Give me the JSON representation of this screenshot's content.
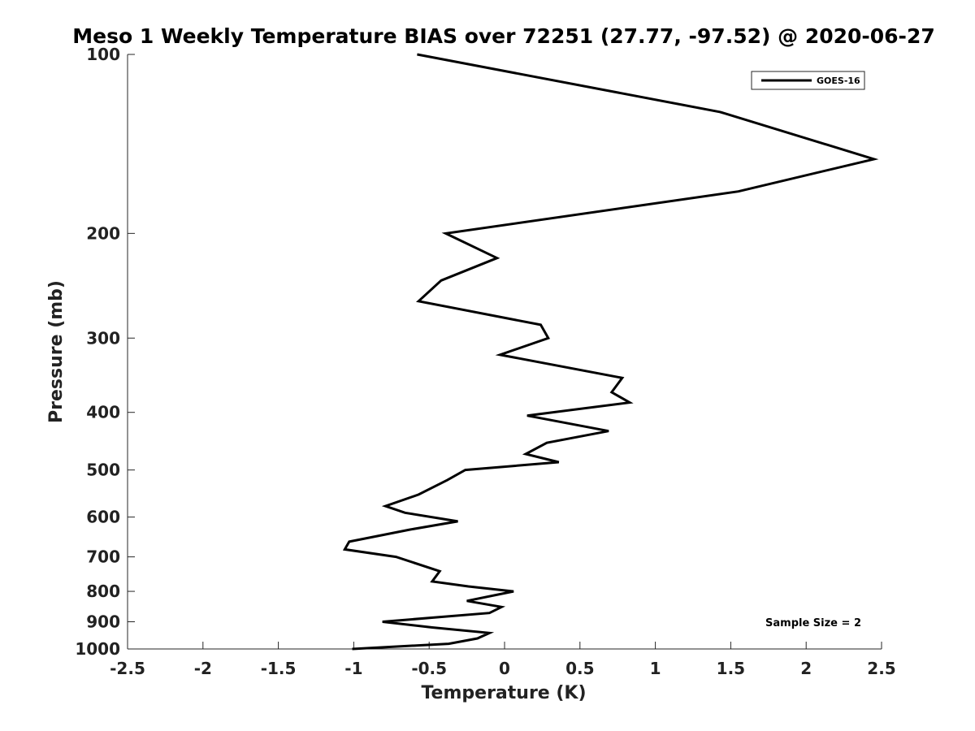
{
  "chart_data": {
    "type": "line",
    "title": "Meso 1 Weekly Temperature BIAS over 72251 (27.77, -97.52) @ 2020-06-27",
    "xlabel": "Temperature (K)",
    "ylabel": "Pressure (mb)",
    "xlim": [
      -2.5,
      2.5
    ],
    "ylim": [
      100,
      1000
    ],
    "y_scale": "log",
    "y_reversed": true,
    "x_ticks": [
      -2.5,
      -2,
      -1.5,
      -1,
      -0.5,
      0,
      0.5,
      1,
      1.5,
      2,
      2.5
    ],
    "x_tick_labels": [
      "-2.5",
      "-2",
      "-1.5",
      "-1",
      "-0.5",
      "0",
      "0.5",
      "1",
      "1.5",
      "2",
      "2.5"
    ],
    "y_ticks": [
      100,
      200,
      300,
      400,
      500,
      600,
      700,
      800,
      900,
      1000
    ],
    "y_tick_labels": [
      "100",
      "200",
      "300",
      "400",
      "500",
      "600",
      "700",
      "800",
      "900",
      "1000"
    ],
    "grid": false,
    "legend_position": "top-right",
    "series": [
      {
        "name": "GOES-16",
        "color": "#000000",
        "x": [
          -0.58,
          1.43,
          2.45,
          1.55,
          -0.39,
          -0.05,
          -0.42,
          -0.57,
          0.24,
          0.29,
          -0.03,
          0.78,
          0.71,
          0.83,
          0.15,
          0.69,
          0.28,
          0.14,
          0.36,
          -0.26,
          -0.38,
          -0.57,
          -0.79,
          -0.66,
          -0.31,
          -0.63,
          -1.03,
          -1.06,
          -0.72,
          -0.43,
          -0.48,
          -0.24,
          0.06,
          -0.25,
          -0.02,
          -0.1,
          -0.81,
          -0.48,
          -0.1,
          -0.18,
          -0.37,
          -1.01
        ],
        "y": [
          100,
          125,
          150,
          170,
          200,
          220,
          240,
          260,
          285,
          300,
          320,
          350,
          370,
          385,
          405,
          430,
          450,
          470,
          485,
          500,
          520,
          550,
          575,
          590,
          610,
          630,
          660,
          680,
          700,
          740,
          770,
          785,
          800,
          830,
          850,
          870,
          900,
          920,
          940,
          960,
          980,
          1000
        ]
      }
    ],
    "annotations": [
      {
        "text": "Sample Size = 2"
      }
    ]
  }
}
